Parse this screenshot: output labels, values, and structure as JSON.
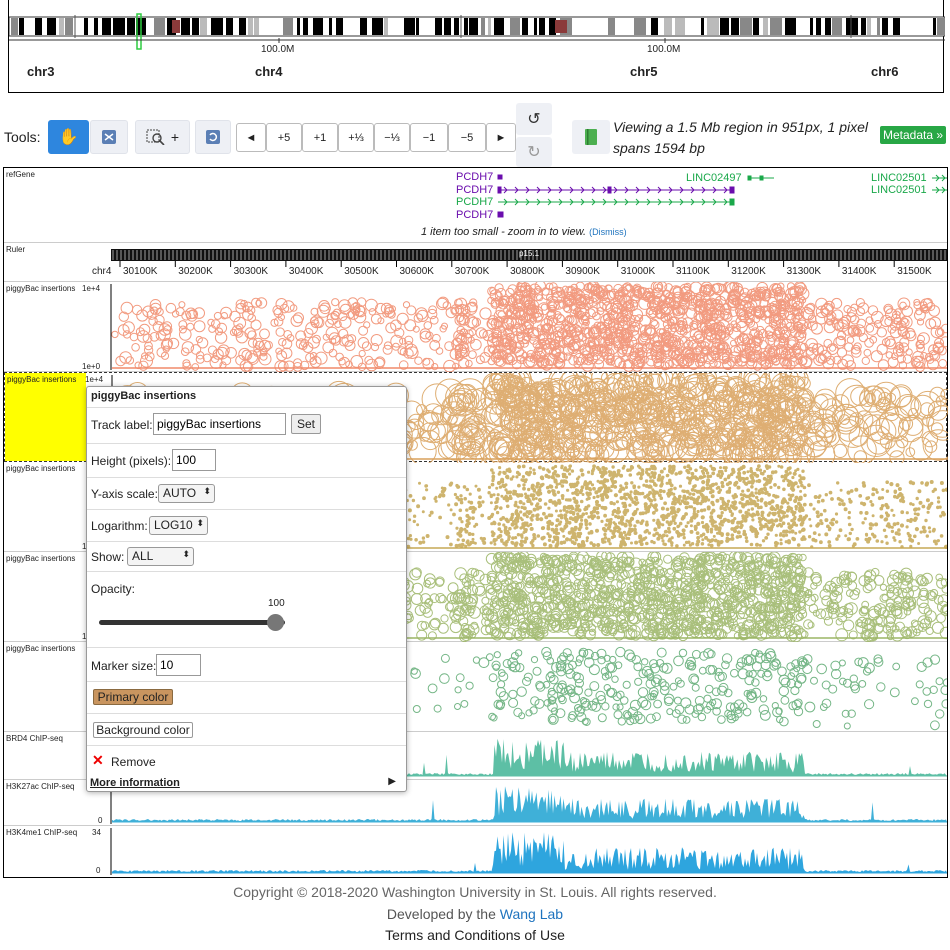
{
  "ideogram": {
    "chromosomes": [
      "chr3",
      "chr4",
      "chr5",
      "chr6"
    ],
    "ticks": [
      "100.0M",
      "100.0M"
    ]
  },
  "toolbar": {
    "tools_label": "Tools:",
    "zoom_buttons": [
      "◄",
      "+5",
      "+1",
      "+⅓",
      "−⅓",
      "−1",
      "−5",
      "►"
    ],
    "zoom_in_plus": "+",
    "viewing_text": "Viewing a 1.5 Mb region in 951px, 1 pixel spans 1594 bp",
    "metadata_label": "Metadata »"
  },
  "tracks": {
    "refgene": {
      "label": "refGene",
      "genes": [
        "PCDH7",
        "PCDH7",
        "PCDH7",
        "PCDH7",
        "LINC02497",
        "LINC02501",
        "LINC02501"
      ],
      "too_small_text": "1 item too small - zoom in to view.",
      "dismiss_label": "(Dismiss)"
    },
    "ruler": {
      "label": "Ruler",
      "band": "p15.1",
      "chrom_prefix": "chr4",
      "ticks": [
        "30100K",
        "30200K",
        "30300K",
        "30400K",
        "30500K",
        "30600K",
        "30700K",
        "30800K",
        "30900K",
        "31000K",
        "31100K",
        "31200K",
        "31300K",
        "31400K",
        "31500K"
      ]
    },
    "piggybac_label": "piggyBac insertions",
    "piggybac_ymax": "1e+4",
    "piggybac_ymin": "1e+0",
    "piggybac_partial_min": "1",
    "brd4_label": "BRD4 ChIP-seq",
    "h3k27ac_label": "H3K27ac ChIP-seq",
    "h3k27ac_min": "0",
    "h3k4me1_label": "H3K4me1 ChIP-seq",
    "h3k4me1_max": "34",
    "h3k4me1_min": "0"
  },
  "popup": {
    "title": "piggyBac insertions",
    "track_label_label": "Track label:",
    "track_label_value": "piggyBac insertions",
    "set_label": "Set",
    "height_label": "Height (pixels):",
    "height_value": "100",
    "yscale_label": "Y-axis scale:",
    "yscale_value": "AUTO",
    "log_label": "Logarithm:",
    "log_value": "LOG10",
    "show_label": "Show:",
    "show_value": "ALL",
    "opacity_label": "Opacity:",
    "opacity_value": "100",
    "marker_label": "Marker size:",
    "marker_value": "10",
    "primary_color_label": "Primary color",
    "background_color_label": "Background color",
    "remove_label": "Remove",
    "more_info_label": "More information",
    "primary_color": "#c9955f"
  },
  "footer": {
    "copyright": "Copyright © 2018-2020 Washington University in St. Louis. All rights reserved.",
    "developed_prefix": "Developed by the",
    "lab_link": "Wang Lab",
    "terms_link": "Terms and Conditions of Use"
  },
  "colors": {
    "track1": "#f08a6a",
    "track2": "#d9a05b",
    "track3": "#c6a855",
    "track4": "#9bb565",
    "track5": "#5daa72",
    "brd4": "#5dbfa5",
    "h3k27ac": "#3fb0d8",
    "h3k4me1": "#2ea5de",
    "gene_purple": "#6a0dad",
    "gene_green": "#1aa84a"
  }
}
